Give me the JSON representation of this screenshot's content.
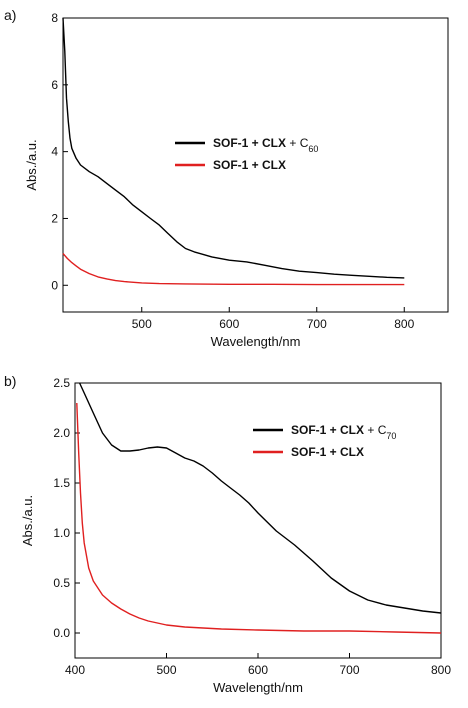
{
  "chart_data": [
    {
      "type": "line",
      "panel_label": "a)",
      "xlabel": "Wavelength/nm",
      "ylabel": "Abs./a.u.",
      "xlim": [
        410,
        850
      ],
      "ylim": [
        -0.8,
        8
      ],
      "xticks": [
        500,
        600,
        700,
        800
      ],
      "yticks": [
        0,
        2,
        4,
        6,
        8
      ],
      "xtick_labels": [
        "500",
        "600",
        "700",
        "800"
      ],
      "ytick_labels": [
        "0",
        "2",
        "4",
        "6",
        "8"
      ],
      "legend_position": "center-right",
      "series": [
        {
          "name_parts": [
            {
              "text": "SOF-1 + CLX",
              "style": "bold"
            },
            {
              "text": " + C",
              "style": "normal"
            },
            {
              "text": "60",
              "style": "sub"
            }
          ],
          "color": "#000000",
          "x": [
            410,
            412,
            414,
            416,
            418,
            420,
            425,
            430,
            440,
            450,
            460,
            470,
            480,
            490,
            500,
            510,
            520,
            530,
            540,
            550,
            560,
            580,
            600,
            620,
            640,
            660,
            680,
            700,
            720,
            740,
            760,
            780,
            800
          ],
          "y": [
            8.0,
            7.0,
            5.6,
            4.9,
            4.4,
            4.1,
            3.8,
            3.6,
            3.4,
            3.25,
            3.05,
            2.85,
            2.65,
            2.4,
            2.2,
            2.0,
            1.8,
            1.55,
            1.3,
            1.1,
            1.0,
            0.85,
            0.75,
            0.7,
            0.6,
            0.5,
            0.42,
            0.38,
            0.33,
            0.3,
            0.27,
            0.24,
            0.22
          ]
        },
        {
          "name_parts": [
            {
              "text": "SOF-1 + CLX",
              "style": "bold"
            }
          ],
          "color": "#e02020",
          "x": [
            410,
            415,
            420,
            425,
            430,
            440,
            450,
            460,
            470,
            480,
            500,
            520,
            550,
            600,
            650,
            700,
            750,
            800
          ],
          "y": [
            0.95,
            0.8,
            0.68,
            0.58,
            0.48,
            0.35,
            0.25,
            0.19,
            0.14,
            0.11,
            0.07,
            0.05,
            0.04,
            0.03,
            0.03,
            0.02,
            0.02,
            0.02
          ]
        }
      ]
    },
    {
      "type": "line",
      "panel_label": "b)",
      "xlabel": "Wavelength/nm",
      "ylabel": "Abs./a.u.",
      "xlim": [
        400,
        800
      ],
      "ylim": [
        -0.25,
        2.5
      ],
      "xticks": [
        400,
        500,
        600,
        700,
        800
      ],
      "yticks": [
        0.0,
        0.5,
        1.0,
        1.5,
        2.0,
        2.5
      ],
      "xtick_labels": [
        "400",
        "500",
        "600",
        "700",
        "800"
      ],
      "ytick_labels": [
        "0.0",
        "0.5",
        "1.0",
        "1.5",
        "2.0",
        "2.5"
      ],
      "legend_position": "top-right",
      "series": [
        {
          "name_parts": [
            {
              "text": "SOF-1 + CLX",
              "style": "bold"
            },
            {
              "text": " + C",
              "style": "normal"
            },
            {
              "text": "70",
              "style": "sub"
            }
          ],
          "color": "#000000",
          "x": [
            405,
            410,
            420,
            430,
            440,
            450,
            460,
            470,
            480,
            490,
            500,
            510,
            520,
            530,
            540,
            550,
            560,
            570,
            580,
            590,
            600,
            620,
            640,
            660,
            680,
            700,
            720,
            740,
            760,
            780,
            800
          ],
          "y": [
            2.5,
            2.4,
            2.2,
            2.0,
            1.88,
            1.82,
            1.82,
            1.83,
            1.85,
            1.86,
            1.85,
            1.8,
            1.75,
            1.72,
            1.67,
            1.6,
            1.52,
            1.45,
            1.38,
            1.3,
            1.2,
            1.02,
            0.88,
            0.72,
            0.55,
            0.42,
            0.33,
            0.28,
            0.25,
            0.22,
            0.2
          ]
        },
        {
          "name_parts": [
            {
              "text": "SOF-1 + CLX",
              "style": "bold"
            }
          ],
          "color": "#e02020",
          "x": [
            402,
            404,
            406,
            408,
            410,
            415,
            420,
            430,
            440,
            450,
            460,
            470,
            480,
            490,
            500,
            520,
            540,
            560,
            600,
            650,
            700,
            750,
            800
          ],
          "y": [
            2.3,
            1.8,
            1.4,
            1.1,
            0.9,
            0.65,
            0.52,
            0.38,
            0.3,
            0.24,
            0.19,
            0.15,
            0.12,
            0.1,
            0.08,
            0.06,
            0.05,
            0.04,
            0.03,
            0.02,
            0.02,
            0.01,
            0.0
          ]
        }
      ]
    }
  ]
}
